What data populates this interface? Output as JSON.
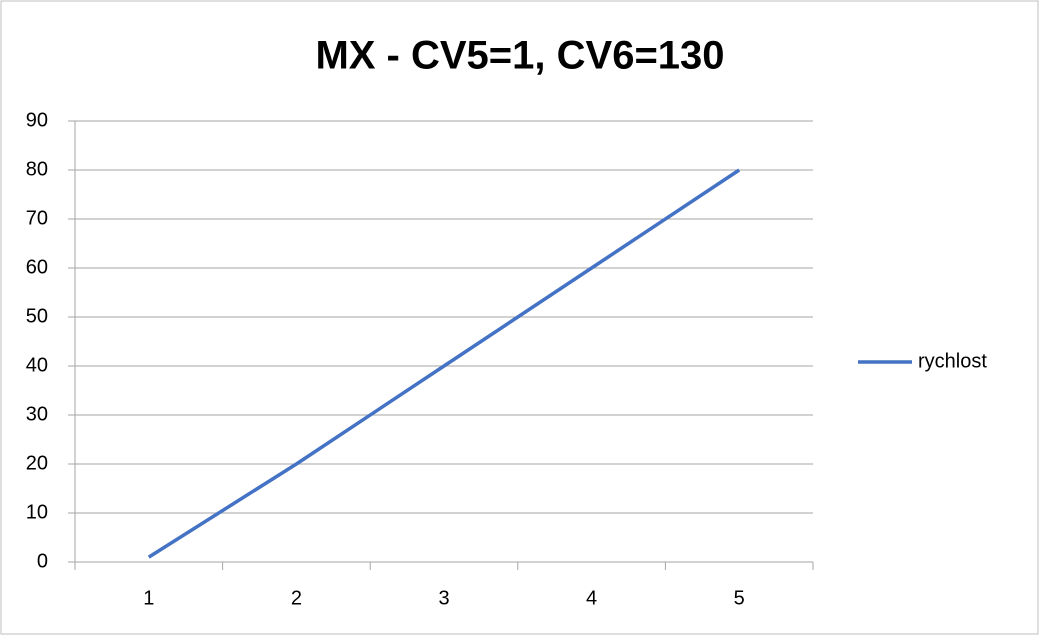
{
  "chart_data": {
    "type": "line",
    "title": "MX - CV5=1, CV6=130",
    "categories": [
      "1",
      "2",
      "3",
      "4",
      "5"
    ],
    "series": [
      {
        "name": "rychlost",
        "color": "#4472c4",
        "values": [
          1,
          20,
          40,
          60,
          80
        ]
      }
    ],
    "ylim": [
      0,
      90
    ],
    "yticks": [
      0,
      10,
      20,
      30,
      40,
      50,
      60,
      70,
      80,
      90
    ],
    "grid": true,
    "legend": "right"
  }
}
